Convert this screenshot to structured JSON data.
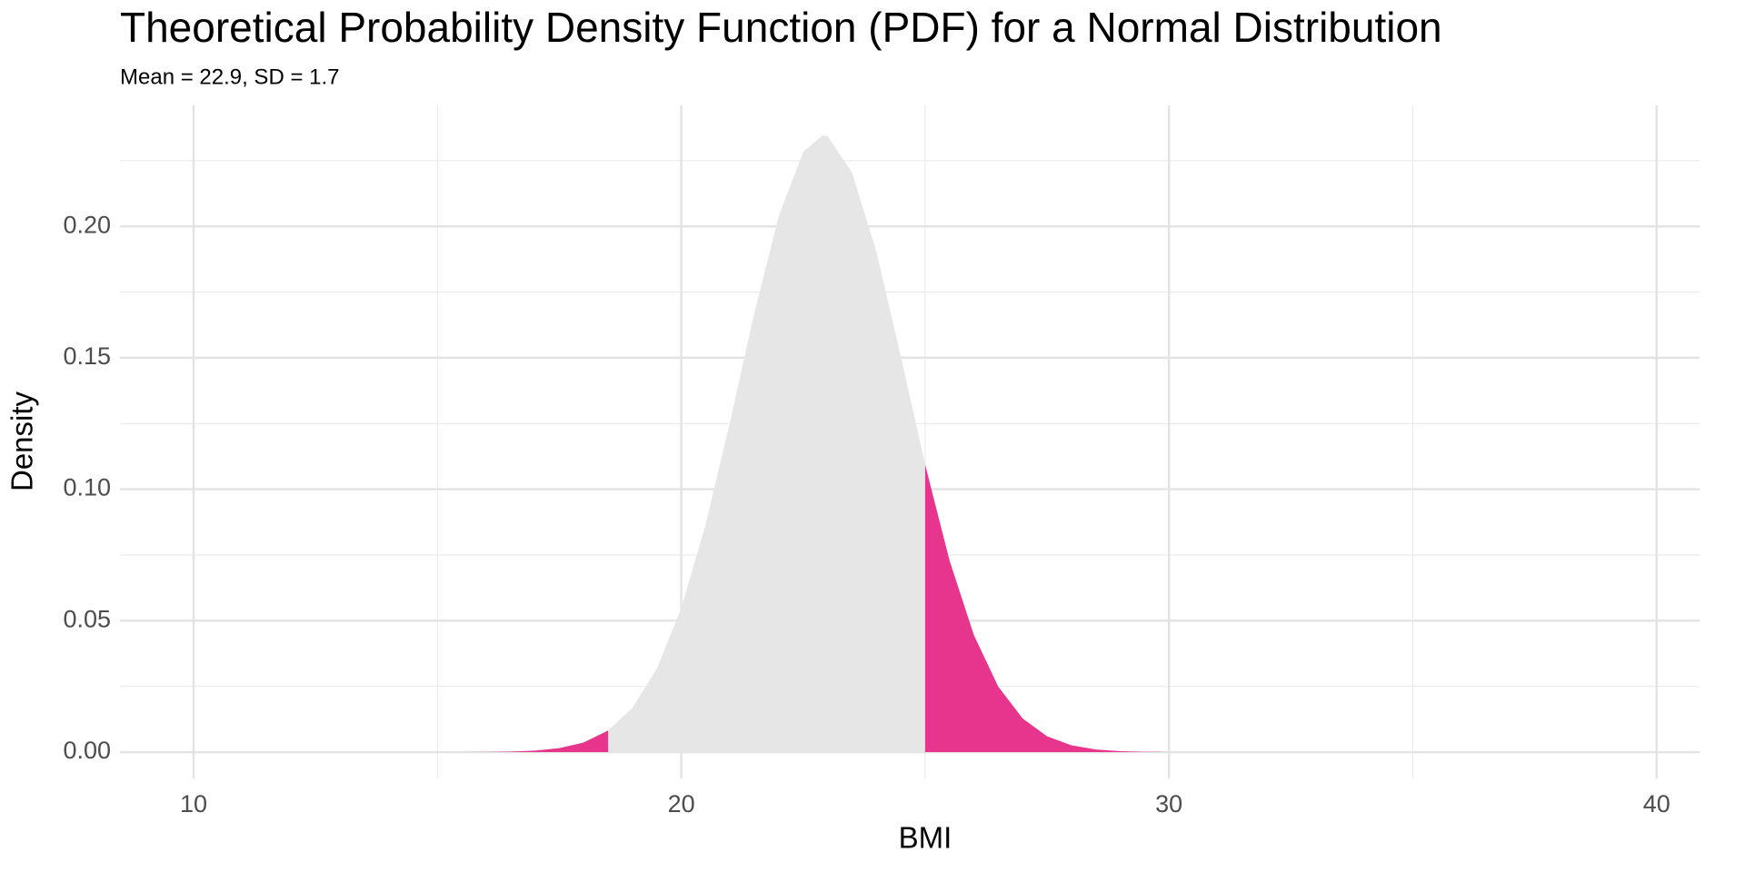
{
  "chart_data": {
    "type": "area",
    "title": "Theoretical Probability Density Function (PDF) for a Normal Distribution",
    "subtitle": "Mean = 22.9, SD = 1.7",
    "x_label": "BMI",
    "y_label": "Density",
    "series": [
      {
        "color": "#e6e6e6",
        "x": [
          15,
          15.5,
          16,
          16.5,
          17,
          17.5,
          18,
          18.5,
          19,
          19.5,
          20,
          20.5,
          21,
          21.5,
          22,
          22.5,
          22.9,
          23,
          23.5,
          24,
          24.5,
          25,
          25.5,
          26,
          26.5,
          27,
          27.5,
          28,
          28.5,
          29,
          29.5,
          30,
          30.5,
          31
        ],
        "values": [
          5e-06,
          1.8e-05,
          6.2e-05,
          0.000196,
          0.00057,
          0.00151,
          0.00369,
          0.00824,
          0.0169,
          0.0318,
          0.0548,
          0.0866,
          0.1257,
          0.1672,
          0.204,
          0.2283,
          0.2347,
          0.2343,
          0.2205,
          0.1904,
          0.1507,
          0.1094,
          0.0729,
          0.0445,
          0.0249,
          0.0128,
          0.00603,
          0.00261,
          0.00103,
          0.00038,
          0.000125,
          3.8e-05,
          1.1e-05,
          3e-06
        ]
      },
      {
        "color": "#e7358e",
        "x": [
          15,
          15.5,
          16,
          16.5,
          17,
          17.5,
          18,
          18.5
        ],
        "values": [
          5e-06,
          1.8e-05,
          6.2e-05,
          0.000196,
          0.00057,
          0.00151,
          0.00369,
          0.00824
        ]
      },
      {
        "color": "#e7358e",
        "x": [
          25,
          25.5,
          26,
          26.5,
          27,
          27.5,
          28,
          28.5,
          29,
          29.5,
          30,
          30.5,
          31
        ],
        "values": [
          0.1094,
          0.0729,
          0.0445,
          0.0249,
          0.0128,
          0.00603,
          0.00261,
          0.00103,
          0.00038,
          0.000125,
          3.8e-05,
          1.1e-05,
          3e-06
        ]
      }
    ],
    "xlim": [
      8.49,
      40.88
    ],
    "xticks": [
      10,
      20,
      30,
      40
    ],
    "xminor": [
      15,
      25,
      35
    ],
    "ylim": [
      -0.01,
      0.246
    ],
    "yticks": [
      {
        "value": 0,
        "label": "0.00"
      },
      {
        "value": 0.05,
        "label": "0.05"
      },
      {
        "value": 0.1,
        "label": "0.10"
      },
      {
        "value": 0.15,
        "label": "0.15"
      },
      {
        "value": 0.2,
        "label": "0.20"
      }
    ],
    "yminor": [
      0.025,
      0.075,
      0.125,
      0.175,
      0.225
    ],
    "grid": true
  }
}
